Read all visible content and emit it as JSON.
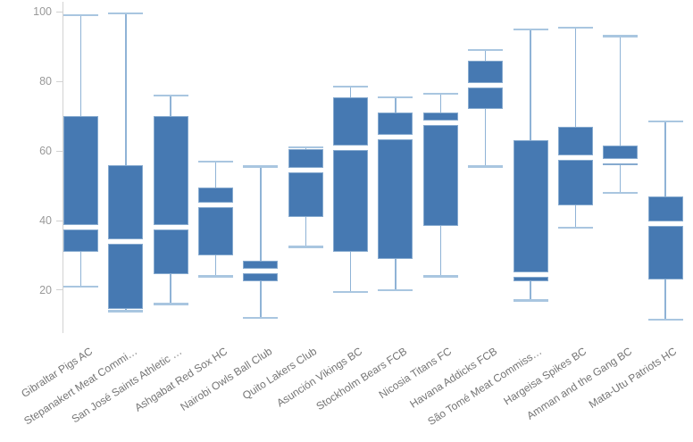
{
  "chart_data": {
    "type": "box",
    "title": "",
    "xlabel": "",
    "ylabel": "",
    "grid": false,
    "legend": null,
    "ylim": [
      7.5,
      103
    ],
    "yticks": [
      20,
      40,
      60,
      80,
      100
    ],
    "categories": [
      "Gibraltar Pigs AC",
      "Stepanakert Meat Commi…",
      "San José Saints Athletic …",
      "Ashgabat Red Sox HC",
      "Nairobi Owls Ball Club",
      "Quito Lakers Club",
      "Asunción Vikings BC",
      "Stockholm Bears FCB",
      "Nicosia Titans FC",
      "Havana Addicks FCB",
      "São Tomé Meat Commiss…",
      "Hargeisa Spikes BC",
      "Amman and the Gang BC",
      "Mata-Utu Patriots HC"
    ],
    "boxes": [
      {
        "low": 21,
        "q1": 31,
        "median": 38,
        "q3": 70,
        "high": 99
      },
      {
        "low": 14,
        "q1": 14.5,
        "median": 34,
        "q3": 56,
        "high": 99.5
      },
      {
        "low": 16,
        "q1": 24.5,
        "median": 38,
        "q3": 70,
        "high": 76
      },
      {
        "low": 24,
        "q1": 30,
        "median": 44.5,
        "q3": 49.5,
        "high": 57
      },
      {
        "low": 12,
        "q1": 22.5,
        "median": 25.5,
        "q3": 28.5,
        "high": 55.5
      },
      {
        "low": 32.5,
        "q1": 41,
        "median": 54.5,
        "q3": 60.5,
        "high": 61
      },
      {
        "low": 19.5,
        "q1": 31,
        "median": 61,
        "q3": 75.5,
        "high": 78.5
      },
      {
        "low": 20,
        "q1": 29,
        "median": 64,
        "q3": 71,
        "high": 75.5
      },
      {
        "low": 24,
        "q1": 38.5,
        "median": 68,
        "q3": 71,
        "high": 76.5
      },
      {
        "low": 55.5,
        "q1": 72,
        "median": 79,
        "q3": 86,
        "high": 89
      },
      {
        "low": 17,
        "q1": 22.5,
        "median": 24.5,
        "q3": 63,
        "high": 95
      },
      {
        "low": 38,
        "q1": 44.5,
        "median": 58,
        "q3": 67,
        "high": 95.5
      },
      {
        "low": 48,
        "q1": 56,
        "median": 57,
        "q3": 61.5,
        "high": 93
      },
      {
        "low": 11.5,
        "q1": 23,
        "median": 39,
        "q3": 47,
        "high": 68.5
      }
    ],
    "colors": {
      "box_fill": "#4679b2",
      "box_border": "#86aacf",
      "whisker_line": "#8fb3d6",
      "whisker_cap": "#a9c6e0",
      "median_gap": "#ffffff",
      "axis_line": "#d2d2d2",
      "tick_label": "#999999",
      "category_label": "#757575"
    }
  }
}
